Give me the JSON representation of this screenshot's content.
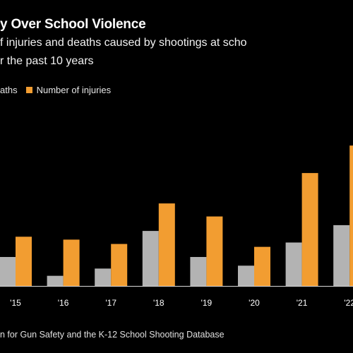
{
  "header": {
    "title": "y Over School Violence",
    "subtitle_line1": "f injuries and deaths caused by shootings at scho",
    "subtitle_line2": "r the past 10 years"
  },
  "legend": {
    "deaths_label": "aths",
    "injuries_label": "Number of injuries"
  },
  "source": "n for Gun Safety and the K-12 School Shooting Database",
  "colors": {
    "background": "#000000",
    "deaths": "#b3b3b3",
    "injuries": "#f29d31",
    "text": "#ffffff",
    "baseline": "#d9d9d9"
  },
  "chart_data": {
    "type": "bar",
    "title": "y Over School Violence",
    "categories": [
      "'15",
      "'16",
      "'17",
      "'18",
      "'19",
      "'20",
      "'21",
      "'22"
    ],
    "series": [
      {
        "name": "aths",
        "values": [
          20,
          7,
          12,
          38,
          20,
          14,
          30,
          42
        ]
      },
      {
        "name": "Number of injuries",
        "values": [
          34,
          32,
          29,
          57,
          48,
          27,
          78,
          97
        ]
      }
    ],
    "ylim": [
      0,
      100
    ],
    "grid": false,
    "legend_position": "top-left"
  }
}
